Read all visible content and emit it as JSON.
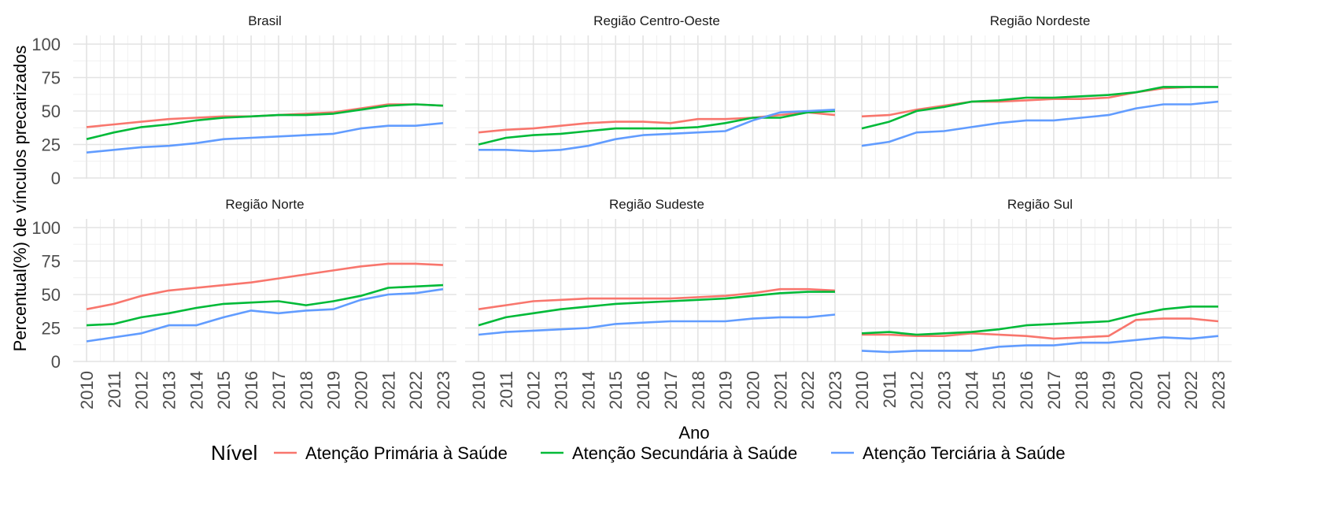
{
  "chart_data": {
    "type": "line",
    "xlabel": "Ano",
    "ylabel": "Percentual(%) de vínculos precarizados",
    "x": [
      2010,
      2011,
      2012,
      2013,
      2014,
      2015,
      2016,
      2017,
      2018,
      2019,
      2020,
      2021,
      2022,
      2023
    ],
    "ylim": [
      0,
      100
    ],
    "yticks": [
      0,
      25,
      50,
      75,
      100
    ],
    "grid": true,
    "legend": {
      "title": "Nível",
      "position": "bottom",
      "entries": [
        {
          "name": "Atenção Primária à Saúde",
          "color": "#F8766D"
        },
        {
          "name": "Atenção Secundária à Saúde",
          "color": "#00BA38"
        },
        {
          "name": "Atenção Terciária à Saúde",
          "color": "#619CFF"
        }
      ]
    },
    "panels": [
      {
        "title": "Brasil",
        "series": [
          {
            "name": "Atenção Primária à Saúde",
            "values": [
              38,
              40,
              42,
              44,
              45,
              46,
              46,
              47,
              48,
              49,
              52,
              55,
              55,
              54
            ]
          },
          {
            "name": "Atenção Secundária à Saúde",
            "values": [
              29,
              34,
              38,
              40,
              43,
              45,
              46,
              47,
              47,
              48,
              51,
              54,
              55,
              54
            ]
          },
          {
            "name": "Atenção Terciária à Saúde",
            "values": [
              19,
              21,
              23,
              24,
              26,
              29,
              30,
              31,
              32,
              33,
              37,
              39,
              39,
              41
            ]
          }
        ]
      },
      {
        "title": "Região Centro-Oeste",
        "series": [
          {
            "name": "Atenção Primária à Saúde",
            "values": [
              34,
              36,
              37,
              39,
              41,
              42,
              42,
              41,
              44,
              44,
              45,
              47,
              49,
              47
            ]
          },
          {
            "name": "Atenção Secundária à Saúde",
            "values": [
              25,
              30,
              32,
              33,
              35,
              37,
              37,
              37,
              38,
              41,
              45,
              45,
              49,
              50
            ]
          },
          {
            "name": "Atenção Terciária à Saúde",
            "values": [
              21,
              21,
              20,
              21,
              24,
              29,
              32,
              33,
              34,
              35,
              43,
              49,
              50,
              51
            ]
          }
        ]
      },
      {
        "title": "Região Nordeste",
        "series": [
          {
            "name": "Atenção Primária à Saúde",
            "values": [
              46,
              47,
              51,
              54,
              57,
              57,
              58,
              59,
              59,
              60,
              64,
              67,
              68,
              68
            ]
          },
          {
            "name": "Atenção Secundária à Saúde",
            "values": [
              37,
              42,
              50,
              53,
              57,
              58,
              60,
              60,
              61,
              62,
              64,
              68,
              68,
              68
            ]
          },
          {
            "name": "Atenção Terciária à Saúde",
            "values": [
              24,
              27,
              34,
              35,
              38,
              41,
              43,
              43,
              45,
              47,
              52,
              55,
              55,
              57
            ]
          }
        ]
      },
      {
        "title": "Região Norte",
        "series": [
          {
            "name": "Atenção Primária à Saúde",
            "values": [
              39,
              43,
              49,
              53,
              55,
              57,
              59,
              62,
              65,
              68,
              71,
              73,
              73,
              72
            ]
          },
          {
            "name": "Atenção Secundária à Saúde",
            "values": [
              27,
              28,
              33,
              36,
              40,
              43,
              44,
              45,
              42,
              45,
              49,
              55,
              56,
              57
            ]
          },
          {
            "name": "Atenção Terciária à Saúde",
            "values": [
              15,
              18,
              21,
              27,
              27,
              33,
              38,
              36,
              38,
              39,
              46,
              50,
              51,
              54
            ]
          }
        ]
      },
      {
        "title": "Região Sudeste",
        "series": [
          {
            "name": "Atenção Primária à Saúde",
            "values": [
              39,
              42,
              45,
              46,
              47,
              47,
              47,
              47,
              48,
              49,
              51,
              54,
              54,
              53
            ]
          },
          {
            "name": "Atenção Secundária à Saúde",
            "values": [
              27,
              33,
              36,
              39,
              41,
              43,
              44,
              45,
              46,
              47,
              49,
              51,
              52,
              52
            ]
          },
          {
            "name": "Atenção Terciária à Saúde",
            "values": [
              20,
              22,
              23,
              24,
              25,
              28,
              29,
              30,
              30,
              30,
              32,
              33,
              33,
              35
            ]
          }
        ]
      },
      {
        "title": "Região Sul",
        "series": [
          {
            "name": "Atenção Primária à Saúde",
            "values": [
              20,
              20,
              19,
              19,
              21,
              20,
              19,
              17,
              18,
              19,
              31,
              32,
              32,
              30
            ]
          },
          {
            "name": "Atenção Secundária à Saúde",
            "values": [
              21,
              22,
              20,
              21,
              22,
              24,
              27,
              28,
              29,
              30,
              35,
              39,
              41,
              41
            ]
          },
          {
            "name": "Atenção Terciária à Saúde",
            "values": [
              8,
              7,
              8,
              8,
              8,
              11,
              12,
              12,
              14,
              14,
              16,
              18,
              17,
              19
            ]
          }
        ]
      }
    ]
  }
}
